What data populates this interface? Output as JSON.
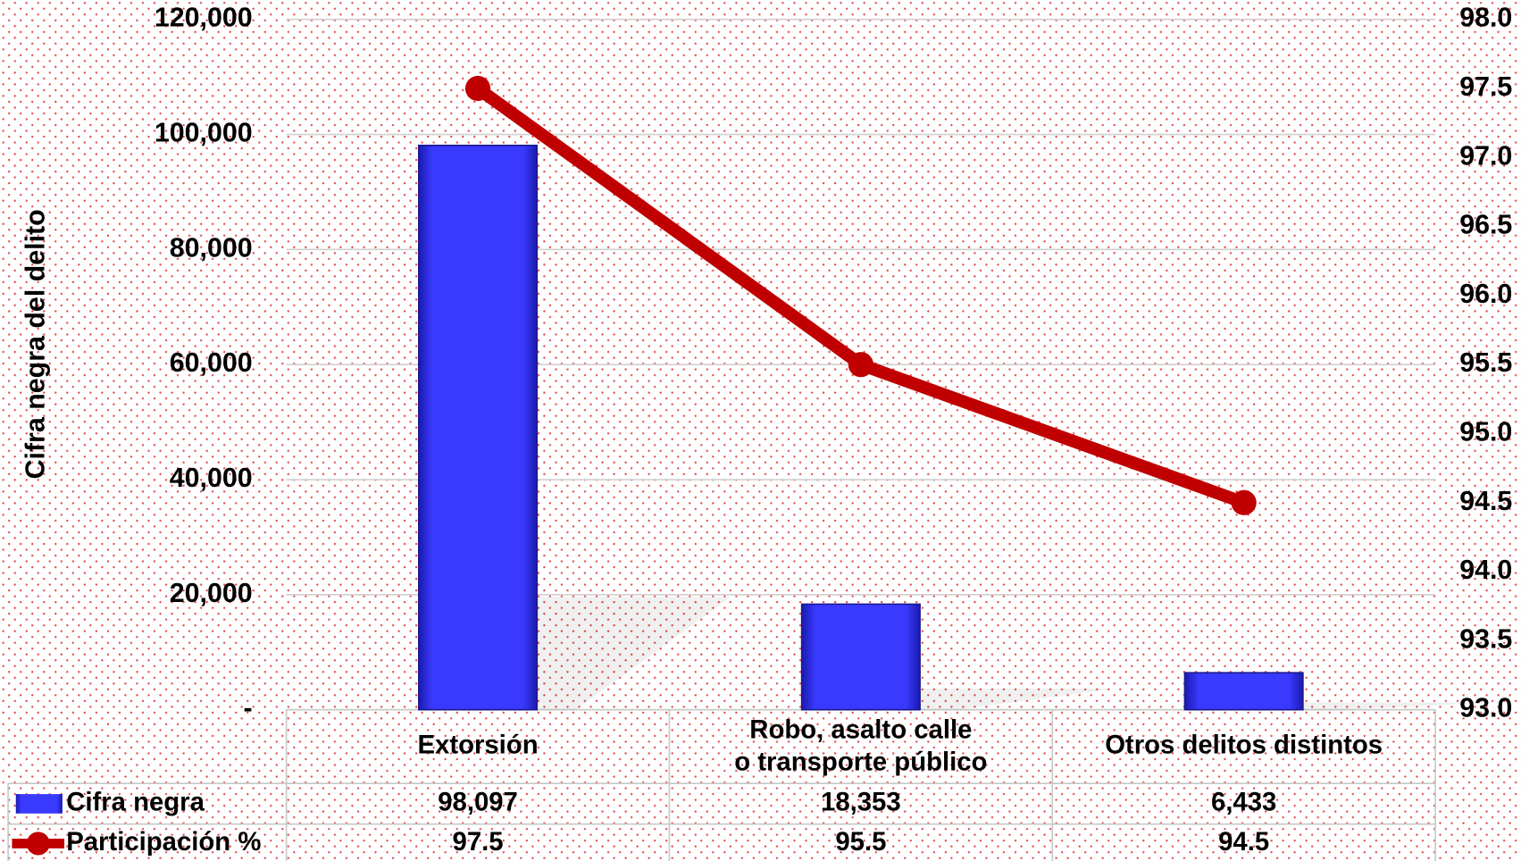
{
  "chart_data": {
    "type": "bar_line",
    "y_label": "Cifra negra del delito",
    "categories": [
      "Extorsión",
      "Robo, asalto calle o transporte público",
      "Otros delitos distintos"
    ],
    "series": [
      {
        "name": "Cifra negra",
        "type": "bar",
        "color": "#3535ff",
        "values": [
          98097,
          18353,
          6433
        ],
        "value_labels": [
          "98,097",
          "18,353",
          "6,433"
        ]
      },
      {
        "name": "Participación %",
        "type": "line",
        "axis": "y2",
        "color": "#c00000",
        "values": [
          97.5,
          95.5,
          94.5
        ]
      }
    ],
    "ylim": [
      0,
      120000
    ],
    "yticks": [
      {
        "value": 0,
        "label": "-"
      },
      {
        "value": 20000,
        "label": "20,000"
      },
      {
        "value": 40000,
        "label": "40,000"
      },
      {
        "value": 60000,
        "label": "60,000"
      },
      {
        "value": 80000,
        "label": "80,000"
      },
      {
        "value": 100000,
        "label": "100,000"
      },
      {
        "value": 120000,
        "label": "120,000"
      }
    ],
    "y2lim": [
      93,
      98
    ],
    "y2ticks": [
      {
        "value": 93,
        "label": "93.0"
      },
      93.5,
      {
        "value": 94,
        "label": "94.0"
      },
      94.5,
      {
        "value": 95,
        "label": "95.0"
      },
      95.5,
      {
        "value": 96,
        "label": "96.0"
      },
      96.5,
      {
        "value": 97,
        "label": "97.0"
      },
      97.5,
      {
        "value": 98,
        "label": "98.0"
      }
    ],
    "grid": true
  }
}
